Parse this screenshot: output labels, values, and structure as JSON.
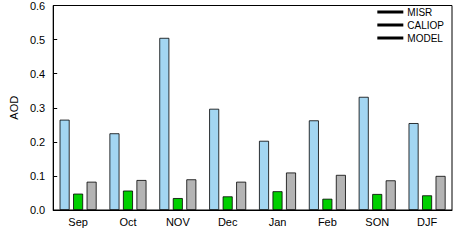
{
  "chart_data": {
    "type": "bar",
    "y_label": "AOD",
    "categories": [
      "Sep",
      "Oct",
      "NOV",
      "Dec",
      "Jan",
      "Feb",
      "SON",
      "DJF"
    ],
    "series": [
      {
        "name": "MISR",
        "color": "#a3d6f2",
        "values": [
          0.265,
          0.225,
          0.505,
          0.297,
          0.203,
          0.263,
          0.332,
          0.255
        ]
      },
      {
        "name": "CALIOP",
        "color": "#00d000",
        "values": [
          0.048,
          0.057,
          0.035,
          0.04,
          0.055,
          0.033,
          0.047,
          0.043
        ]
      },
      {
        "name": "MODEL",
        "color": "#b4b4b4",
        "values": [
          0.083,
          0.088,
          0.09,
          0.083,
          0.11,
          0.103,
          0.087,
          0.1
        ]
      }
    ],
    "ylim": [
      0,
      0.6
    ],
    "yticks": [
      {
        "value": 0,
        "label": "0.0"
      },
      0.1,
      0.2,
      0.3,
      0.4,
      0.5,
      0.6
    ],
    "grid": false,
    "legend": "top-right"
  }
}
